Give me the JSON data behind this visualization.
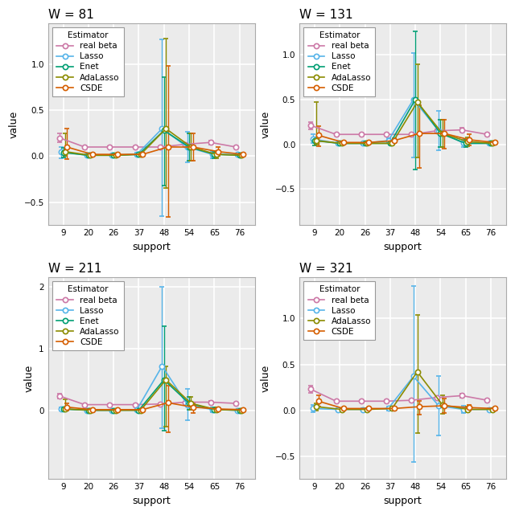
{
  "titles": [
    "W = 81",
    "W = 131",
    "W = 211",
    "W = 321"
  ],
  "x_labels": [
    9,
    20,
    26,
    37,
    48,
    54,
    65,
    76
  ],
  "xlabel": "support",
  "ylabel": "value",
  "estimators_all": [
    "real beta",
    "Lasso",
    "Enet",
    "AdaLasso",
    "CSDE"
  ],
  "colors_all": [
    "#CC79A7",
    "#56B4E9",
    "#009E73",
    "#8B8B00",
    "#D55E00"
  ],
  "panels": [
    {
      "title": "W = 81",
      "ylim": [
        -0.75,
        1.45
      ],
      "yticks": [
        -0.5,
        0.0,
        0.5,
        1.0
      ],
      "estimators": [
        "real beta",
        "Lasso",
        "Enet",
        "AdaLasso",
        "CSDE"
      ],
      "data": {
        "real beta": {
          "y": [
            0.2,
            0.1,
            0.1,
            0.1,
            0.1,
            0.13,
            0.15,
            0.1
          ],
          "yerr_lo": [
            0.05,
            0.01,
            0.01,
            0.01,
            0.01,
            0.01,
            0.02,
            0.01
          ],
          "yerr_hi": [
            0.05,
            0.01,
            0.01,
            0.01,
            0.01,
            0.01,
            0.02,
            0.01
          ]
        },
        "Lasso": {
          "y": [
            0.05,
            0.01,
            0.01,
            0.02,
            0.3,
            0.1,
            0.02,
            0.02
          ],
          "yerr_lo": [
            0.07,
            0.01,
            0.01,
            0.02,
            0.95,
            0.17,
            0.04,
            0.01
          ],
          "yerr_hi": [
            0.05,
            0.01,
            0.01,
            0.02,
            0.97,
            0.17,
            0.04,
            0.01
          ]
        },
        "Enet": {
          "y": [
            0.04,
            0.01,
            0.01,
            0.02,
            0.28,
            0.1,
            0.02,
            0.01
          ],
          "yerr_lo": [
            0.05,
            0.01,
            0.01,
            0.02,
            0.6,
            0.15,
            0.04,
            0.01
          ],
          "yerr_hi": [
            0.05,
            0.01,
            0.01,
            0.02,
            0.58,
            0.15,
            0.04,
            0.01
          ]
        },
        "AdaLasso": {
          "y": [
            0.05,
            0.01,
            0.01,
            0.02,
            0.3,
            0.1,
            0.02,
            0.01
          ],
          "yerr_lo": [
            0.05,
            0.01,
            0.01,
            0.02,
            0.65,
            0.15,
            0.04,
            0.01
          ],
          "yerr_hi": [
            0.2,
            0.01,
            0.01,
            0.02,
            0.98,
            0.15,
            0.04,
            0.01
          ]
        },
        "CSDE": {
          "y": [
            0.1,
            0.02,
            0.02,
            0.02,
            0.1,
            0.1,
            0.05,
            0.02
          ],
          "yerr_lo": [
            0.13,
            0.01,
            0.01,
            0.02,
            0.76,
            0.15,
            0.05,
            0.01
          ],
          "yerr_hi": [
            0.2,
            0.01,
            0.01,
            0.02,
            0.88,
            0.15,
            0.05,
            0.01
          ]
        }
      }
    },
    {
      "title": "W = 131",
      "ylim": [
        -0.9,
        1.35
      ],
      "yticks": [
        -0.5,
        0.0,
        0.5,
        1.0
      ],
      "estimators": [
        "real beta",
        "Lasso",
        "Enet",
        "AdaLasso",
        "CSDE"
      ],
      "data": {
        "real beta": {
          "y": [
            0.21,
            0.11,
            0.11,
            0.11,
            0.11,
            0.15,
            0.16,
            0.11
          ],
          "yerr_lo": [
            0.04,
            0.01,
            0.01,
            0.01,
            0.01,
            0.02,
            0.02,
            0.01
          ],
          "yerr_hi": [
            0.04,
            0.01,
            0.01,
            0.01,
            0.01,
            0.02,
            0.02,
            0.01
          ]
        },
        "Lasso": {
          "y": [
            0.06,
            0.01,
            0.01,
            0.04,
            0.5,
            0.15,
            0.01,
            0.01
          ],
          "yerr_lo": [
            0.05,
            0.01,
            0.01,
            0.03,
            0.65,
            0.22,
            0.04,
            0.01
          ],
          "yerr_hi": [
            0.05,
            0.01,
            0.01,
            0.03,
            0.52,
            0.22,
            0.04,
            0.01
          ]
        },
        "Enet": {
          "y": [
            0.04,
            0.01,
            0.01,
            0.01,
            0.5,
            0.12,
            0.01,
            0.01
          ],
          "yerr_lo": [
            0.05,
            0.01,
            0.01,
            0.01,
            0.78,
            0.15,
            0.04,
            0.01
          ],
          "yerr_hi": [
            0.04,
            0.01,
            0.01,
            0.01,
            0.76,
            0.15,
            0.04,
            0.01
          ]
        },
        "AdaLasso": {
          "y": [
            0.04,
            0.01,
            0.01,
            0.01,
            0.47,
            0.12,
            0.03,
            0.01
          ],
          "yerr_lo": [
            0.04,
            0.01,
            0.01,
            0.01,
            0.62,
            0.15,
            0.05,
            0.01
          ],
          "yerr_hi": [
            0.43,
            0.01,
            0.01,
            0.01,
            0.42,
            0.15,
            0.05,
            0.01
          ]
        },
        "CSDE": {
          "y": [
            0.1,
            0.02,
            0.02,
            0.04,
            0.12,
            0.12,
            0.05,
            0.02
          ],
          "yerr_lo": [
            0.12,
            0.01,
            0.01,
            0.03,
            0.38,
            0.17,
            0.06,
            0.01
          ],
          "yerr_hi": [
            0.1,
            0.01,
            0.01,
            0.03,
            0.31,
            0.15,
            0.06,
            0.01
          ]
        }
      }
    },
    {
      "title": "W = 211",
      "ylim": [
        -1.1,
        2.15
      ],
      "yticks": [
        0.0,
        1.0,
        2.0
      ],
      "estimators": [
        "real beta",
        "Lasso",
        "Enet",
        "AdaLasso",
        "CSDE"
      ],
      "data": {
        "real beta": {
          "y": [
            0.24,
            0.1,
            0.1,
            0.1,
            0.11,
            0.14,
            0.14,
            0.12
          ],
          "yerr_lo": [
            0.04,
            0.01,
            0.01,
            0.01,
            0.01,
            0.01,
            0.02,
            0.01
          ],
          "yerr_hi": [
            0.04,
            0.01,
            0.01,
            0.01,
            0.01,
            0.01,
            0.02,
            0.01
          ]
        },
        "Lasso": {
          "y": [
            0.03,
            0.01,
            0.01,
            0.02,
            0.72,
            0.1,
            0.02,
            0.01
          ],
          "yerr_lo": [
            0.03,
            0.01,
            0.01,
            0.02,
            1.0,
            0.25,
            0.04,
            0.01
          ],
          "yerr_hi": [
            0.03,
            0.01,
            0.01,
            0.02,
            1.28,
            0.25,
            0.04,
            0.01
          ]
        },
        "Enet": {
          "y": [
            0.03,
            0.01,
            0.01,
            0.01,
            0.5,
            0.12,
            0.02,
            0.01
          ],
          "yerr_lo": [
            0.03,
            0.01,
            0.01,
            0.01,
            0.82,
            0.1,
            0.04,
            0.01
          ],
          "yerr_hi": [
            0.03,
            0.01,
            0.01,
            0.01,
            0.86,
            0.1,
            0.04,
            0.01
          ]
        },
        "AdaLasso": {
          "y": [
            0.03,
            0.01,
            0.01,
            0.01,
            0.5,
            0.12,
            0.02,
            0.01
          ],
          "yerr_lo": [
            0.03,
            0.01,
            0.01,
            0.01,
            0.76,
            0.1,
            0.04,
            0.01
          ],
          "yerr_hi": [
            0.15,
            0.01,
            0.01,
            0.01,
            0.22,
            0.1,
            0.04,
            0.01
          ]
        },
        "CSDE": {
          "y": [
            0.06,
            0.02,
            0.02,
            0.02,
            0.13,
            0.06,
            0.03,
            0.02
          ],
          "yerr_lo": [
            0.06,
            0.01,
            0.01,
            0.01,
            0.48,
            0.1,
            0.03,
            0.01
          ],
          "yerr_hi": [
            0.06,
            0.01,
            0.01,
            0.01,
            0.28,
            0.06,
            0.03,
            0.01
          ]
        }
      }
    },
    {
      "title": "W = 321",
      "ylim": [
        -0.75,
        1.45
      ],
      "yticks": [
        -0.5,
        0.0,
        0.5,
        1.0
      ],
      "estimators": [
        "real beta",
        "Lasso",
        "AdaLasso",
        "CSDE"
      ],
      "data": {
        "real beta": {
          "y": [
            0.23,
            0.1,
            0.1,
            0.1,
            0.11,
            0.14,
            0.16,
            0.11
          ],
          "yerr_lo": [
            0.04,
            0.01,
            0.01,
            0.01,
            0.01,
            0.01,
            0.02,
            0.01
          ],
          "yerr_hi": [
            0.04,
            0.01,
            0.01,
            0.01,
            0.01,
            0.01,
            0.02,
            0.01
          ]
        },
        "Lasso": {
          "y": [
            0.02,
            0.01,
            0.01,
            0.02,
            0.37,
            0.05,
            0.01,
            0.01
          ],
          "yerr_lo": [
            0.04,
            0.01,
            0.01,
            0.02,
            0.93,
            0.32,
            0.04,
            0.01
          ],
          "yerr_hi": [
            0.04,
            0.01,
            0.01,
            0.02,
            0.98,
            0.32,
            0.04,
            0.01
          ]
        },
        "AdaLasso": {
          "y": [
            0.04,
            0.01,
            0.01,
            0.02,
            0.42,
            0.06,
            0.01,
            0.01
          ],
          "yerr_lo": [
            0.04,
            0.01,
            0.01,
            0.02,
            0.67,
            0.1,
            0.03,
            0.01
          ],
          "yerr_hi": [
            0.04,
            0.01,
            0.01,
            0.02,
            0.62,
            0.1,
            0.03,
            0.01
          ]
        },
        "CSDE": {
          "y": [
            0.1,
            0.02,
            0.02,
            0.02,
            0.04,
            0.05,
            0.03,
            0.02
          ],
          "yerr_lo": [
            0.06,
            0.01,
            0.01,
            0.01,
            0.09,
            0.08,
            0.03,
            0.01
          ],
          "yerr_hi": [
            0.06,
            0.01,
            0.01,
            0.01,
            0.06,
            0.08,
            0.03,
            0.01
          ]
        }
      }
    }
  ],
  "bg_color": "#EBEBEB",
  "grid_color": "#FFFFFF",
  "legend_fontsize": 7.5,
  "tick_fontsize": 7.5,
  "label_fontsize": 9,
  "title_fontsize": 11
}
